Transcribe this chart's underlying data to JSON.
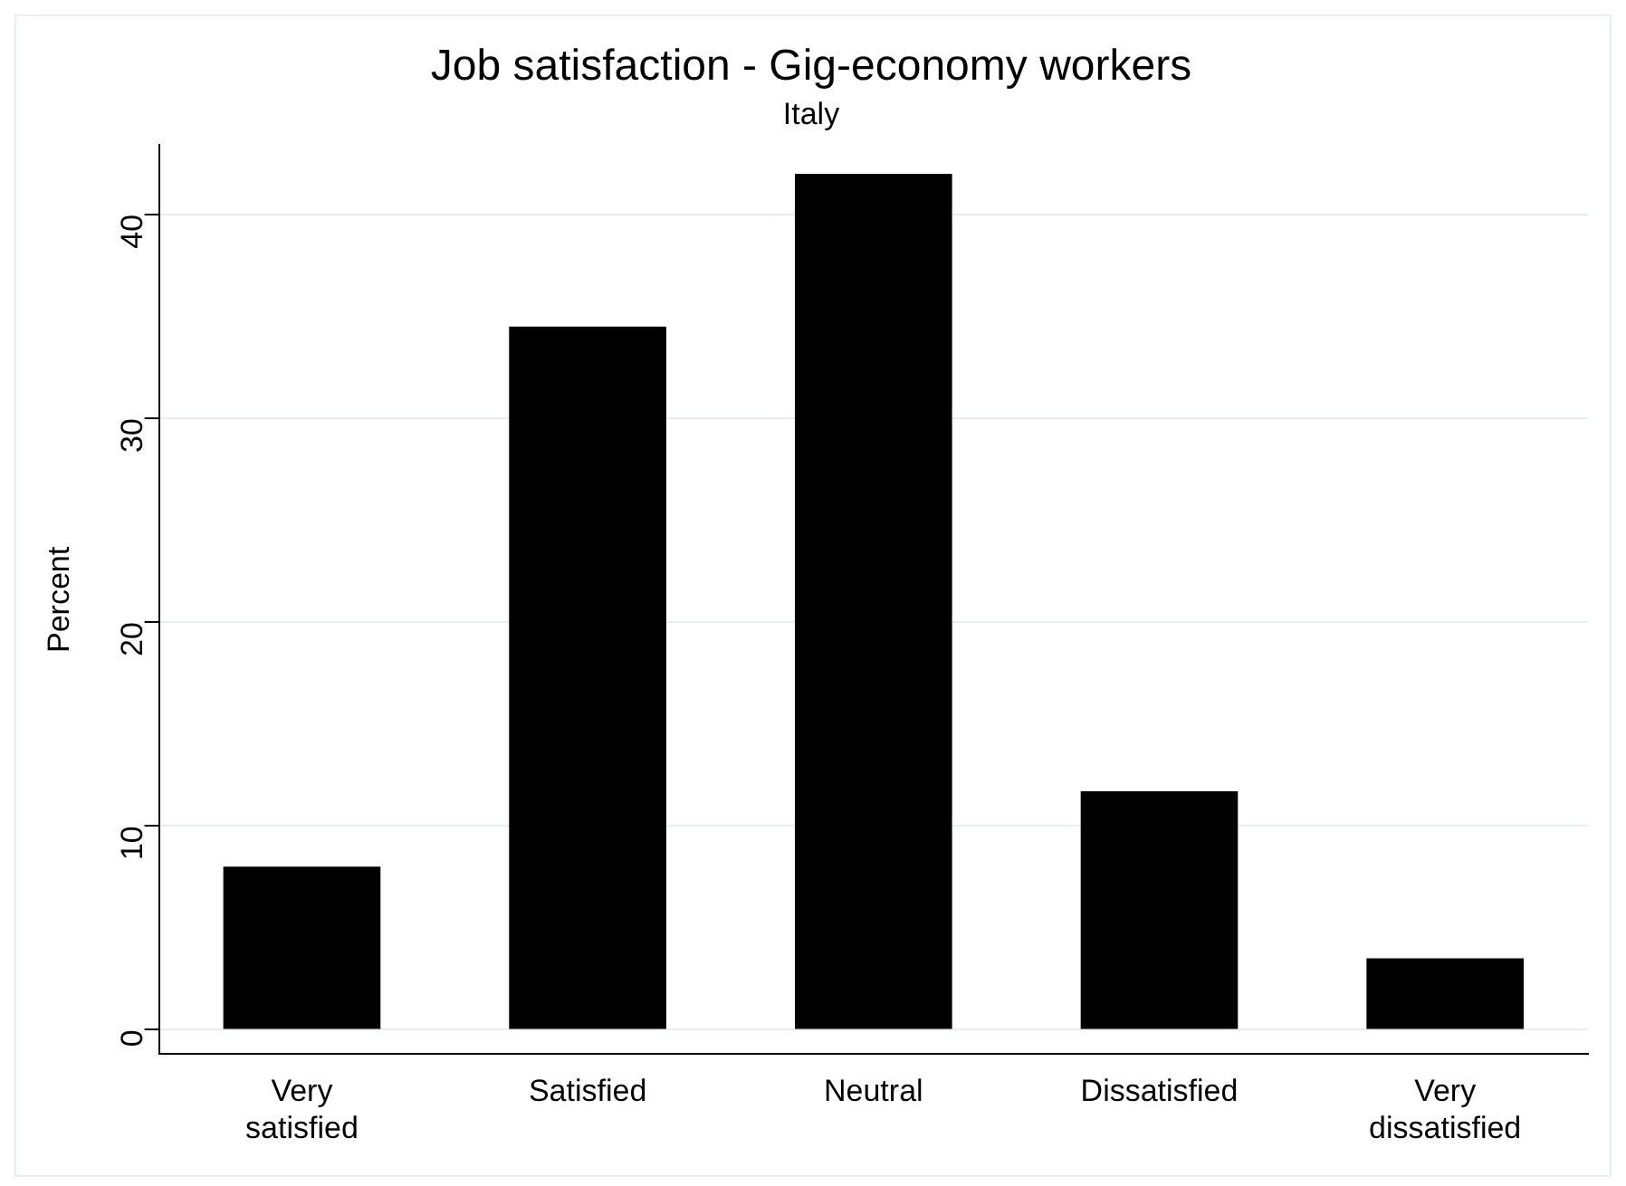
{
  "chart_data": {
    "type": "bar",
    "title": "Job satisfaction - Gig-economy workers",
    "subtitle": "Italy",
    "ylabel": "Percent",
    "categories": [
      "Very satisfied",
      "Satisfied",
      "Neutral",
      "Dissatisfied",
      "Very dissatisfied"
    ],
    "values": [
      8.0,
      34.5,
      42.0,
      11.7,
      3.5
    ],
    "color": "#000000",
    "ylim": [
      -1.2,
      43.4
    ],
    "yticks": [
      0,
      10,
      20,
      30,
      40
    ],
    "grid": "y",
    "legend": false
  }
}
